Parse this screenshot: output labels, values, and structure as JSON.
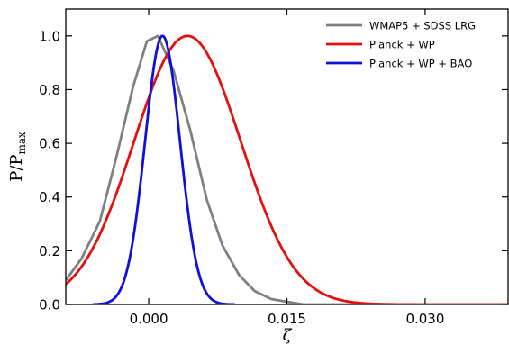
{
  "chart_data": {
    "type": "line",
    "title": "",
    "xlabel": "ζ",
    "ylabel_main": "P/P",
    "ylabel_sub": "max",
    "xlim": [
      -0.009,
      0.039
    ],
    "ylim": [
      0.0,
      1.1
    ],
    "xticks": [
      0.0,
      0.015,
      0.03
    ],
    "xtick_labels": [
      "0.000",
      "0.015",
      "0.030"
    ],
    "yticks": [
      0.0,
      0.2,
      0.4,
      0.6,
      0.8,
      1.0
    ],
    "ytick_labels": [
      "0.0",
      "0.2",
      "0.4",
      "0.6",
      "0.8",
      "1.0"
    ],
    "grid": false,
    "legend_position": "top-right",
    "series": [
      {
        "name": "WMAP5 + SDSS LRG",
        "color": "#808080",
        "x": [
          -0.009,
          -0.0073,
          -0.0053,
          -0.0035,
          -0.0017,
          -0.0002,
          0.001,
          0.0027,
          0.0045,
          0.0063,
          0.008,
          0.0098,
          0.0115,
          0.0133,
          0.015,
          0.0168,
          0.0185,
          0.0203,
          0.022,
          0.0238,
          0.025,
          0.028,
          0.032,
          0.039
        ],
        "values": [
          0.09,
          0.17,
          0.31,
          0.55,
          0.81,
          0.98,
          1.0,
          0.87,
          0.65,
          0.39,
          0.22,
          0.11,
          0.05,
          0.02,
          0.01,
          0.0,
          0.0,
          0.0,
          0.0,
          0.0,
          0.0,
          0.0,
          0.0,
          0.0
        ]
      },
      {
        "name": "Planck + WP",
        "color": "#e41010",
        "gaussian": {
          "mu": 0.0042,
          "sigma": 0.0058
        },
        "x_range": [
          -0.009,
          0.039
        ]
      },
      {
        "name": "Planck + WP + BAO",
        "color": "#1010dd",
        "gaussian": {
          "mu": 0.0015,
          "sigma": 0.0019
        },
        "x_range": [
          -0.006,
          0.0093
        ]
      }
    ]
  }
}
